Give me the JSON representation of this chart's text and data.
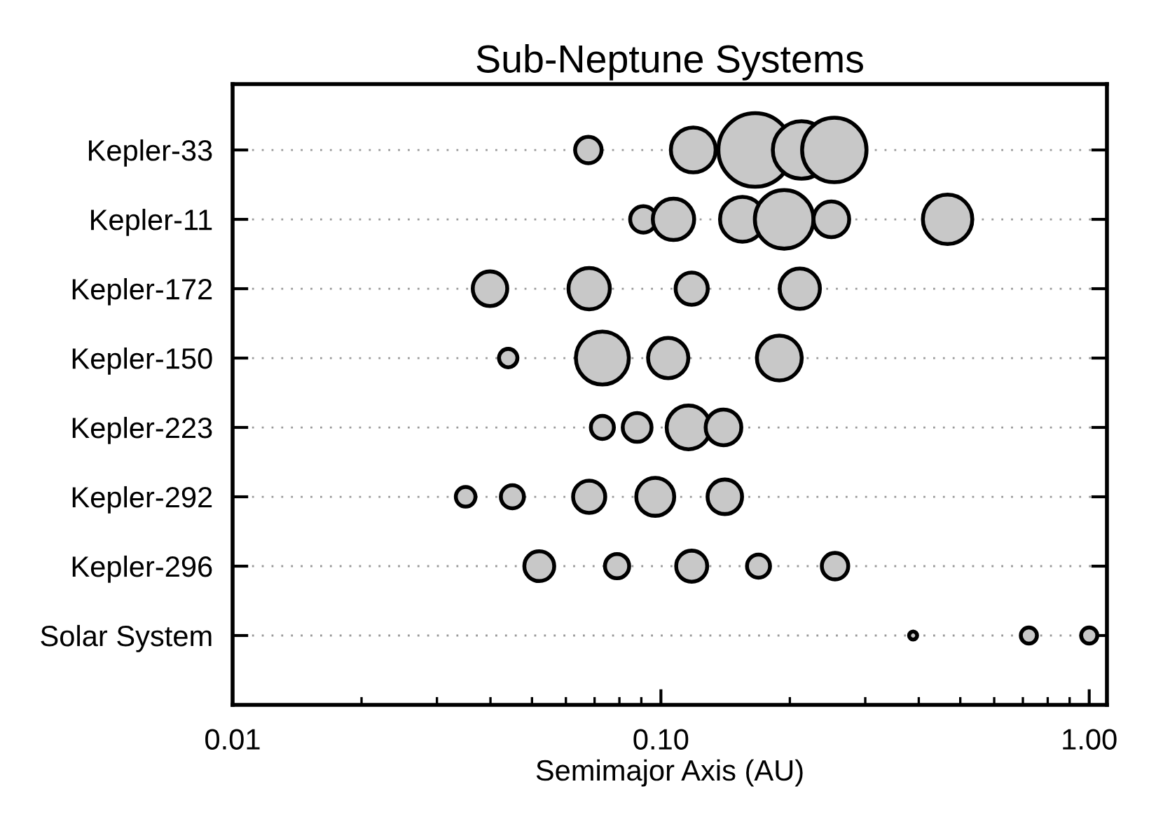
{
  "chart_data": {
    "type": "bubble",
    "title": "Sub-Neptune Systems",
    "xlabel": "Semimajor Axis (AU)",
    "orientation": "horizontal",
    "categories": [
      "Kepler-33",
      "Kepler-11",
      "Kepler-172",
      "Kepler-150",
      "Kepler-223",
      "Kepler-292",
      "Kepler-296",
      "Solar System"
    ],
    "log": "x",
    "xlim": [
      0.01,
      1.1
    ],
    "xticks": [
      0.01,
      {
        "value": 0.1,
        "label": "0.10"
      },
      {
        "value": 1,
        "label": "1.00"
      }
    ],
    "grid": "y",
    "legend": false,
    "series": [
      {
        "color": "#c8c8c8",
        "values": [
          0.0677,
          0.091,
          0.0399,
          0.044,
          0.073,
          0.035,
          0.052,
          0.388
        ],
        "sizes": [
          0.129,
          0.129,
          0.22,
          0.0625,
          0.098,
          0.071,
          0.165,
          0.012
        ]
      },
      {
        "color": "#c8c8c8",
        "values": [
          0.119,
          0.107,
          0.068,
          0.073,
          0.088,
          0.045,
          0.079,
          0.723
        ],
        "sizes": [
          0.371,
          0.316,
          0.316,
          0.517,
          0.153,
          0.098,
          0.108,
          0.048
        ]
      },
      {
        "color": "#c8c8c8",
        "values": [
          0.166,
          0.155,
          0.118,
          0.104,
          0.116,
          0.068,
          0.118,
          1.0
        ],
        "sizes": [
          1,
          0.371,
          0.191,
          0.299,
          0.353,
          0.191,
          0.178,
          0.048
        ]
      },
      {
        "color": "#c8c8c8",
        "values": [
          0.213,
          0.194,
          0.211,
          0.189,
          0.14,
          0.097,
          0.169,
          null
        ],
        "sizes": [
          0.61,
          0.635,
          0.299,
          0.371,
          0.235,
          0.266,
          0.098,
          null
        ]
      },
      {
        "color": "#c8c8c8",
        "values": [
          0.254,
          0.25,
          null,
          null,
          null,
          0.141,
          0.255,
          null
        ],
        "sizes": [
          0.766,
          0.235,
          null,
          null,
          null,
          0.22,
          0.129,
          null
        ]
      },
      {
        "color": "#c8c8c8",
        "values": [
          null,
          0.467,
          null,
          null,
          null,
          null,
          null,
          null
        ],
        "sizes": [
          null,
          0.451,
          null,
          null,
          null,
          null,
          null,
          null
        ]
      }
    ]
  }
}
